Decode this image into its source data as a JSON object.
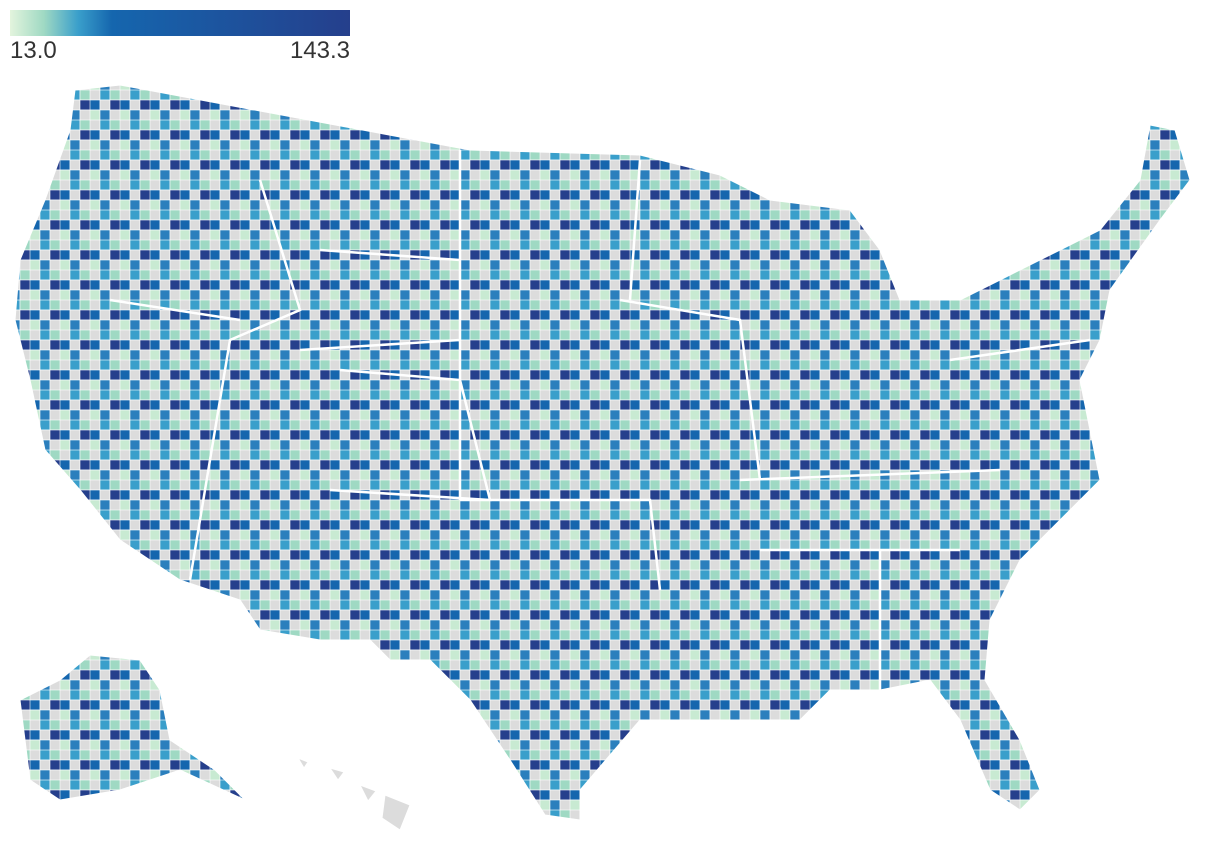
{
  "map": {
    "type": "choropleth",
    "colorscale": [
      [
        0,
        "#e3f4dd"
      ],
      [
        0.1,
        "#9fd9c3"
      ],
      [
        0.2,
        "#3a9fcb"
      ],
      [
        0.3,
        "#1566ae"
      ],
      [
        1,
        "#253f8c"
      ]
    ],
    "cmin": {
      "value": 13,
      "label": "13.0"
    },
    "cmax": {
      "value": 143.3,
      "label": "143.3"
    },
    "missing_color": "#dcdcdc"
  }
}
